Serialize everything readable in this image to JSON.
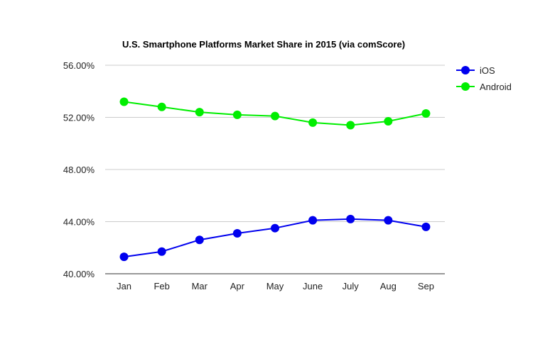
{
  "chart_data": {
    "type": "line",
    "title": "U.S. Smartphone Platforms Market Share in 2015 (via comScore)",
    "categories": [
      "Jan",
      "Feb",
      "Mar",
      "Apr",
      "May",
      "June",
      "July",
      "Aug",
      "Sep"
    ],
    "series": [
      {
        "name": "iOS",
        "color": "#0000ee",
        "values": [
          41.3,
          41.7,
          42.6,
          43.1,
          43.5,
          44.1,
          44.2,
          44.1,
          43.6
        ]
      },
      {
        "name": "Android",
        "color": "#00ee00",
        "values": [
          53.2,
          52.8,
          52.4,
          52.2,
          52.1,
          51.6,
          51.4,
          51.7,
          52.3
        ]
      }
    ],
    "ylim": [
      40,
      56
    ],
    "yticks": [
      {
        "value": 40,
        "label": "40.00%"
      },
      {
        "value": 44,
        "label": "44.00%"
      },
      {
        "value": 48,
        "label": "48.00%"
      },
      {
        "value": 52,
        "label": "52.00%"
      },
      {
        "value": 56,
        "label": "56.00%"
      }
    ],
    "grid": true,
    "legend": "right"
  }
}
